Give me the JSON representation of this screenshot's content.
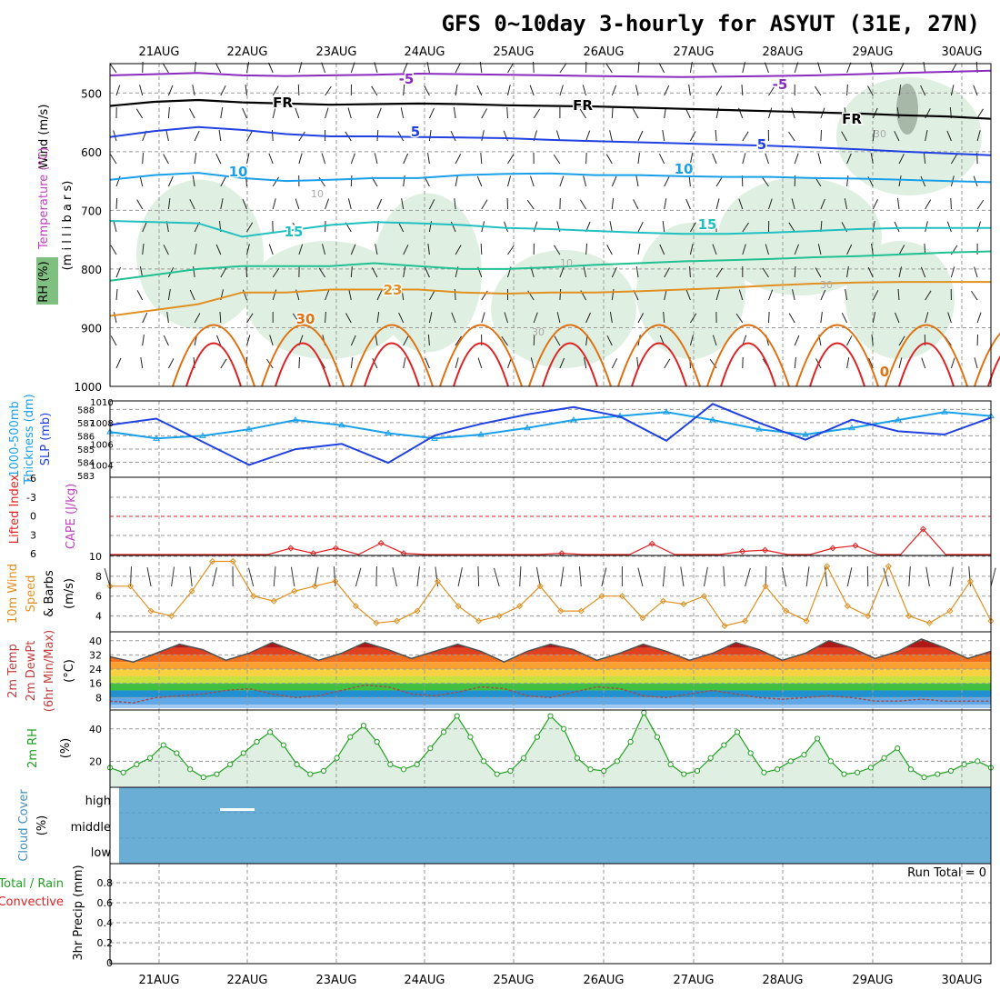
{
  "title": "GFS 0~10day 3-hourly for ASYUT (31E, 27N)",
  "dates": [
    "21AUG",
    "22AUG",
    "23AUG",
    "24AUG",
    "25AUG",
    "26AUG",
    "27AUG",
    "28AUG",
    "29AUG",
    "30AUG"
  ],
  "colors": {
    "purple": "#8a2bbf",
    "blue": "#2040e0",
    "cyan": "#1aa0e8",
    "teal": "#20c0c0",
    "green": "#20c090",
    "orange": "#e09020",
    "darkorange": "#e07010",
    "red": "#e02020",
    "magenta": "#d01080",
    "fill": "#dff0e3"
  },
  "chart_data": [
    {
      "type": "line",
      "panel": "upper-air",
      "ylabels": [
        "Wind (m/s)",
        "Temperature (°C)",
        "RH (%)",
        "(m i l l i b a r s)"
      ],
      "yticks": [
        500,
        600,
        700,
        800,
        900,
        1000
      ],
      "ylim": [
        450,
        1000
      ],
      "contour_labels": [
        "-5",
        "-5",
        "FR",
        "FR",
        "FR",
        "5",
        "5",
        "10",
        "10",
        "15",
        "15",
        "23",
        "30",
        "0",
        "10",
        "30",
        "30",
        "10",
        "30"
      ],
      "isotherms": [
        {
          "name": "-5",
          "color": "#8a2bbf",
          "p": [
            470,
            468,
            466,
            470,
            471,
            470,
            469,
            467,
            468,
            469,
            470,
            471,
            472,
            473,
            472,
            471,
            470,
            468,
            466,
            464,
            462
          ]
        },
        {
          "name": "FR",
          "color": "#000000",
          "p": [
            522,
            515,
            512,
            516,
            518,
            520,
            519,
            518,
            519,
            521,
            522,
            523,
            525,
            527,
            529,
            531,
            533,
            535,
            538,
            540,
            544
          ]
        },
        {
          "name": "5",
          "color": "#2040e0",
          "p": [
            575,
            565,
            558,
            563,
            570,
            574,
            574,
            575,
            576,
            577,
            580,
            582,
            584,
            586,
            588,
            590,
            593,
            596,
            600,
            603,
            606
          ]
        },
        {
          "name": "10",
          "color": "#1aa0e8",
          "p": [
            648,
            640,
            636,
            645,
            650,
            648,
            645,
            645,
            640,
            638,
            637,
            640,
            640,
            642,
            643,
            643,
            645,
            646,
            648,
            650,
            652
          ]
        },
        {
          "name": "15",
          "color": "#20c0c0",
          "p": [
            718,
            720,
            722,
            745,
            735,
            725,
            720,
            722,
            725,
            730,
            732,
            735,
            738,
            740,
            740,
            738,
            735,
            732,
            730,
            730,
            730
          ]
        },
        {
          "name": "20",
          "color": "#20c090",
          "p": [
            820,
            810,
            800,
            795,
            795,
            795,
            790,
            795,
            800,
            800,
            797,
            793,
            790,
            787,
            785,
            783,
            780,
            778,
            775,
            772,
            770
          ]
        },
        {
          "name": "23",
          "color": "#e09020",
          "p": [
            880,
            870,
            860,
            840,
            840,
            835,
            835,
            835,
            840,
            842,
            840,
            840,
            838,
            835,
            832,
            828,
            825,
            823,
            822,
            822,
            822
          ]
        }
      ]
    },
    {
      "type": "line",
      "panel": "thickness-slp",
      "ylabels": [
        "1000-500mb",
        "Thickness (dm)",
        "SLP (mb)"
      ],
      "thickness_ticks": [
        583,
        584,
        585,
        586,
        587,
        588
      ],
      "slp_ticks": [
        1004,
        1006,
        1008,
        1010
      ],
      "series": [
        {
          "name": "Thickness",
          "color": "#1aa0e8",
          "axis": "left",
          "values": [
            586.3,
            585.8,
            586.0,
            586.5,
            587.2,
            586.8,
            586.2,
            585.8,
            586.1,
            586.6,
            587.2,
            587.5,
            587.8,
            587.2,
            586.5,
            586.1,
            586.6,
            587.2,
            587.8,
            587.5
          ]
        },
        {
          "name": "SLP",
          "color": "#2040e0",
          "axis": "right",
          "values": [
            1007.8,
            1008.4,
            1006.2,
            1004.0,
            1005.5,
            1006.0,
            1004.2,
            1006.8,
            1007.9,
            1008.8,
            1009.5,
            1008.6,
            1006.3,
            1009.8,
            1008.0,
            1006.4,
            1008.3,
            1007.2,
            1006.9,
            1008.5
          ]
        }
      ]
    },
    {
      "type": "line",
      "panel": "lifted-cape",
      "ylabels": [
        "Lifted Index",
        "CAPE (J/kg)"
      ],
      "yticks": [
        "-6",
        "-3",
        "0",
        "3",
        "6"
      ],
      "ylim": [
        -6,
        6
      ],
      "series": [
        {
          "name": "Lifted Index",
          "color": "#e02020",
          "values": [
            6.2,
            6.2,
            6.2,
            6.2,
            6.2,
            6.2,
            6.2,
            6.2,
            5.0,
            5.8,
            5.0,
            6.2,
            4.2,
            5.8,
            6.2,
            6.2,
            6.2,
            6.2,
            6.2,
            6.2,
            5.8,
            6.2,
            6.2,
            6.2,
            4.3,
            6.2,
            6.2,
            6.2,
            5.5,
            5.3,
            6.2,
            6.2,
            5.0,
            4.6,
            6.2,
            6.2,
            2.0,
            6.0,
            6.2,
            6.2
          ]
        }
      ]
    },
    {
      "type": "line",
      "panel": "wind10m",
      "ylabels": [
        "10m Wind",
        "Speed",
        "& Barbs",
        "(m/s)"
      ],
      "yticks": [
        4,
        6,
        8,
        10
      ],
      "ylim": [
        2.5,
        10
      ],
      "series": [
        {
          "name": "10m Wind Speed",
          "color": "#e09020",
          "values": [
            7.0,
            7.0,
            4.5,
            4.0,
            6.5,
            9.5,
            9.5,
            6.0,
            5.5,
            6.5,
            7.0,
            7.5,
            5.0,
            3.3,
            3.5,
            4.5,
            7.5,
            5.0,
            3.5,
            4.0,
            5.0,
            7.0,
            4.5,
            4.5,
            6.0,
            6.0,
            3.8,
            5.5,
            5.2,
            6.0,
            3.0,
            3.5,
            7.0,
            4.5,
            3.5,
            9.0,
            5.0,
            4.0,
            9.0,
            4.0,
            3.3,
            4.5,
            7.5,
            3.5
          ]
        }
      ]
    },
    {
      "type": "area",
      "panel": "temp2m",
      "ylabels": [
        "2m Temp",
        "2m DewPt",
        "(6hr Min/Max)",
        "(°C)"
      ],
      "yticks": [
        8,
        16,
        24,
        32,
        40
      ],
      "ylim": [
        2,
        44
      ],
      "series": [
        {
          "name": "2m Temp",
          "color": "#505050",
          "values": [
            31,
            28,
            33,
            38,
            35,
            29,
            33,
            39,
            34,
            29,
            33,
            39,
            35,
            30,
            34,
            38,
            34,
            28,
            34,
            38,
            35,
            29,
            33,
            38,
            34,
            29,
            33,
            39,
            35,
            29,
            33,
            40,
            36,
            30,
            34,
            41,
            36,
            30,
            34
          ]
        },
        {
          "name": "2m DewPt",
          "color": "#a05050",
          "values": [
            6,
            5,
            8,
            9,
            10,
            12,
            13,
            10,
            8,
            9,
            12,
            15,
            14,
            10,
            9,
            11,
            14,
            13,
            9,
            8,
            11,
            14,
            13,
            9,
            8,
            10,
            12,
            10,
            8,
            7,
            8,
            9,
            8,
            6,
            6,
            7,
            6,
            6,
            6
          ]
        }
      ]
    },
    {
      "type": "area",
      "panel": "rh2m",
      "ylabels": [
        "2m RH",
        "(%)"
      ],
      "yticks": [
        20,
        40
      ],
      "ylim": [
        5,
        50
      ],
      "series": [
        {
          "name": "2m RH",
          "color": "#20a020",
          "values": [
            16,
            13,
            18,
            22,
            30,
            25,
            15,
            10,
            12,
            18,
            25,
            32,
            38,
            30,
            18,
            12,
            14,
            22,
            35,
            42,
            32,
            18,
            15,
            18,
            28,
            38,
            48,
            35,
            20,
            12,
            14,
            22,
            35,
            48,
            40,
            22,
            15,
            14,
            20,
            32,
            50,
            35,
            18,
            12,
            14,
            22,
            30,
            38,
            25,
            13,
            15,
            20,
            24,
            34,
            20,
            12,
            13,
            16,
            22,
            28,
            15,
            10,
            12,
            14,
            18,
            20,
            16
          ]
        }
      ]
    },
    {
      "type": "heatmap",
      "panel": "cloud",
      "ylabels": [
        "Cloud Cover",
        "(%)"
      ],
      "yticks": [
        "high",
        "middle",
        "low"
      ]
    },
    {
      "type": "bar",
      "panel": "precip",
      "ylabels": [
        "Total / Rain",
        "Convective",
        "3hr Precip (mm)"
      ],
      "yticks": [
        "0",
        "0.2",
        "0.4",
        "0.6",
        "0.8"
      ],
      "ylim": [
        0,
        1
      ],
      "run_total_label": "Run Total = 0",
      "values": []
    }
  ]
}
